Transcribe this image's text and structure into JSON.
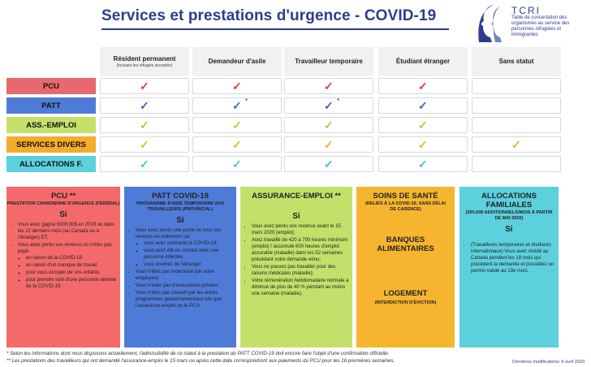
{
  "title": "Services et prestations d'urgence - COVID-19",
  "logo": {
    "name": "TCRI",
    "subtitle": "Table de concertation des organismes au service des personnes réfugiées et immigrantes"
  },
  "columns": [
    {
      "label": "Résident permanent",
      "note": "(incluant les réfugiés acceptés)"
    },
    {
      "label": "Demandeur d'asile",
      "note": ""
    },
    {
      "label": "Travailleur temporaire",
      "note": ""
    },
    {
      "label": "Étudiant étranger",
      "note": ""
    },
    {
      "label": "Sans statut",
      "note": ""
    }
  ],
  "rows": [
    {
      "label": "PCU",
      "bg": "#e8696d",
      "fg": "#111111",
      "check": "#e03a3c",
      "cells": [
        "✓",
        "✓",
        "✓",
        "✓",
        ""
      ],
      "asterisks": [
        "",
        "",
        "",
        "",
        ""
      ]
    },
    {
      "label": "PATT",
      "bg": "#4f7bd8",
      "fg": "#111111",
      "check": "#3b62c9",
      "cells": [
        "✓",
        "✓",
        "✓",
        "✓",
        ""
      ],
      "asterisks": [
        "",
        "*",
        "*",
        "",
        ""
      ]
    },
    {
      "label": "ASS.-EMPLOI",
      "bg": "#c3e06a",
      "fg": "#111111",
      "check": "#a9cf3c",
      "cells": [
        "✓",
        "✓",
        "✓",
        "✓",
        ""
      ],
      "asterisks": [
        "",
        "",
        "",
        "",
        ""
      ]
    },
    {
      "label": "SERVICES DIVERS",
      "bg": "#f4ac2a",
      "fg": "#111111",
      "check": "#efb22c",
      "cells": [
        "✓",
        "✓",
        "✓",
        "✓",
        "✓"
      ],
      "asterisks": [
        "",
        "",
        "",
        "",
        ""
      ]
    },
    {
      "label": "ALLOCATIONS F.",
      "bg": "#5dd0dd",
      "fg": "#111111",
      "check": "#3fc4d2",
      "cells": [
        "✓",
        "✓",
        "✓",
        "✓",
        ""
      ],
      "asterisks": [
        "",
        "",
        "",
        "",
        ""
      ]
    }
  ],
  "boxes": {
    "pcu": {
      "title": "PCU **",
      "subtitle": "PRESTATION CANADIENNE D'URGENCE (FÉDÉRAL)",
      "si": "Si",
      "items": [
        "Vous avez gagné 5000,00$ en 2019 ou dans les 12 derniers mois (au Canada ou à l'étranger) ET;",
        "Vous avez perdu vos revenus ou n'êtes pas payé:"
      ],
      "subitems": [
        "en raison de la COVID-19;",
        "en raison d'un manque de travail;",
        "pour vous occuper de vos enfants;",
        "pour prendre soin d'une personne atteinte de la COVID-19."
      ]
    },
    "patt": {
      "title": "PATT COVID-19",
      "subtitle": "PROGRAMME D'AIDE TEMPORAIRE AUX TRAVAILLEURS (PROVINCIAL)",
      "si": "Si",
      "item1": "Vous avez perdu une partie ou tous vos revenus en isolement car:",
      "subitems": [
        "vous avez contracté la COVID-19;",
        "vous avez été en contact avec une personne infectée;",
        "vous revenez de l'étranger."
      ],
      "items": [
        "Vous n'êtes pas indemnisé par votre employeur;",
        "Vous n'avez pas d'assurances privées;",
        "Vous n'êtes pas couvert par les autres programmes gouvernementaux tels que l'assurance-emploi ou le PCU."
      ]
    },
    "ae": {
      "title": "ASSURANCE-EMPLOI **",
      "si": "Si",
      "items": [
        "Vous avez perdu vos revenus avant le 15 mars 2020 (emploi);",
        "Avez travaillé de 420 à 700 heures minimum (emploi) / accumulé 600 heures d'emploi assurable (maladie) dans les 52 semaines précédant votre demande et/ou;",
        "Vous ne pouvez pas travailler pour des raisons médicales (maladie);",
        "Votre rémunération hebdomadaire normale a diminué de plus de 40 % pendant au moins une semaine (maladie)."
      ]
    },
    "services": {
      "sante": "SOINS DE SANTÉ",
      "sante_note": "(RELIÉS À LA COVID-19, SANS DÉLAI DE CARENCE)",
      "banques": "BANQUES ALIMENTAIRES",
      "logement": "LOGEMENT",
      "logement_note": "(INTERDICTION D'ÉVICTION)"
    },
    "alloc": {
      "title": "ALLOCATIONS FAMILIALES",
      "subtitle": "(300,00$ ADDITIONNELS/MOIS À PARTIR DE MAI 2020)",
      "si": "Si",
      "items": [
        "(Travailleurs temporaires et étudiants internationaux) Vous avez résidé au Canada pendant les 18 mois qui précèdent la demande et possédez un permis valide au 19e mois."
      ]
    }
  },
  "footnotes": [
    "* Selon les informations dont nous disposons actuellement, l'admissibilité de ce statut à la prestation du PATT COVID-19 doit encore faire l'objet d'une confirmation officielle.",
    "** Les prestations des travailleurs qui ont demandé l'assurance-emploi le 15 mars ou après cette date correspondront aux paiements du PCU pour les 16 premières semaines."
  ],
  "modified": "Dernières modifications: 6 avril 2020"
}
